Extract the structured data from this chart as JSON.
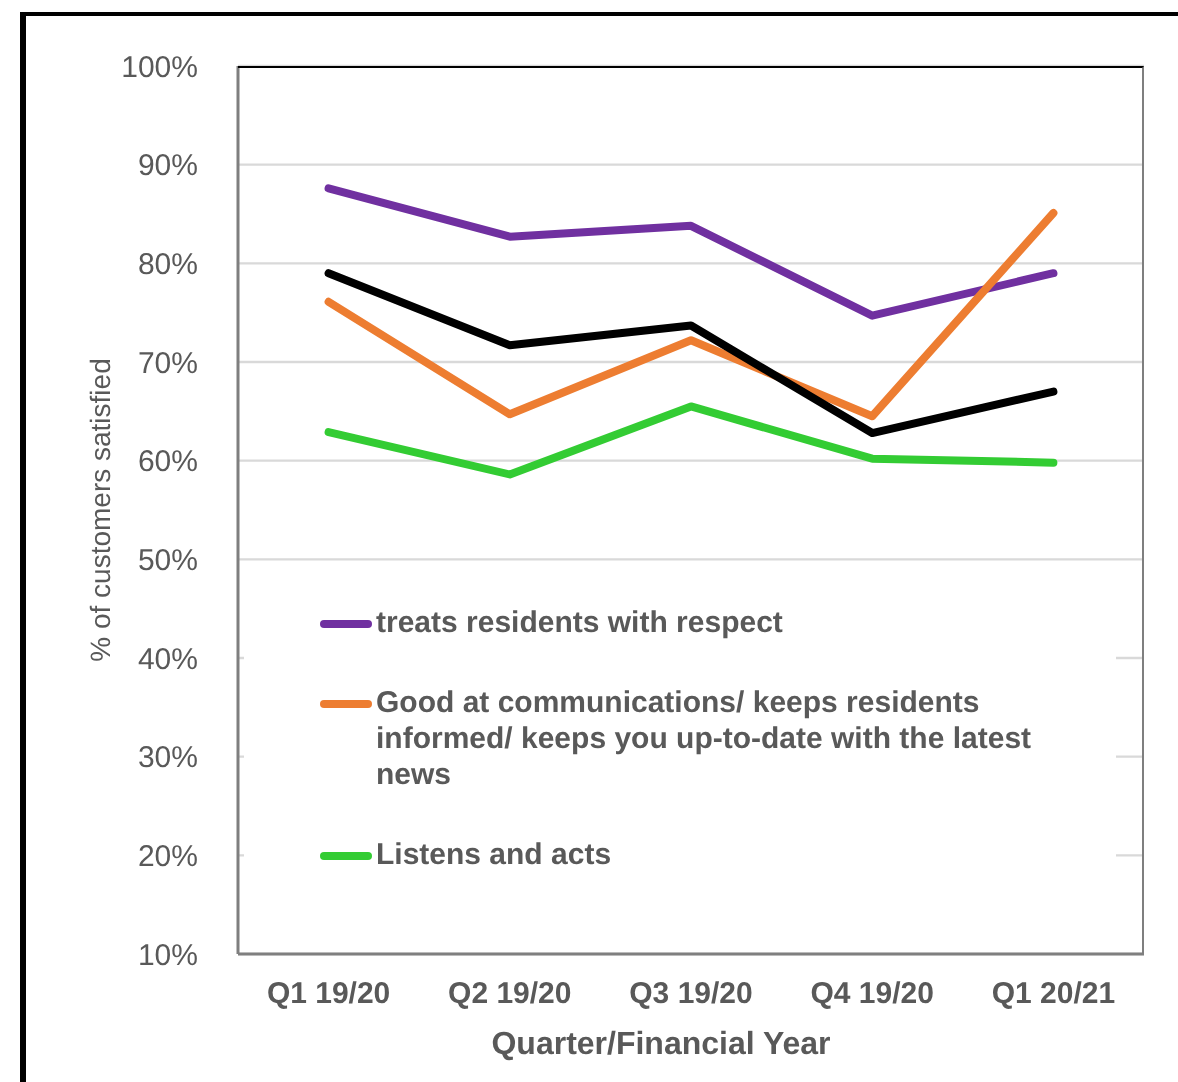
{
  "chart_data": {
    "type": "line",
    "ylabel": "% of customers satisfied",
    "xlabel": "Quarter/Financial Year",
    "categories": [
      "Q1 19/20",
      "Q2 19/20",
      "Q3 19/20",
      "Q4 19/20",
      "Q1 20/21"
    ],
    "series": [
      {
        "name": "treats residents with respect",
        "color": "#7030a0",
        "values": [
          87.6,
          82.7,
          83.8,
          74.7,
          79.0
        ]
      },
      {
        "name": "Good at communications/ keeps residents informed/ keeps you up-to-date with the latest news",
        "color": "#ed7d31",
        "values": [
          76.1,
          64.7,
          72.2,
          64.5,
          85.1
        ]
      },
      {
        "name": "Listens and acts",
        "color": "#33cc33",
        "values": [
          62.9,
          58.6,
          65.5,
          60.2,
          59.8
        ]
      },
      {
        "color": "#000000",
        "values": [
          79.0,
          71.7,
          73.7,
          62.8,
          67.0
        ]
      }
    ],
    "ylim": [
      10,
      100
    ],
    "yticks": [
      {
        "value": 10,
        "label": "10%"
      },
      {
        "value": 20,
        "label": "20%"
      },
      {
        "value": 30,
        "label": "30%"
      },
      {
        "value": 40,
        "label": "40%"
      },
      {
        "value": 50,
        "label": "50%"
      },
      {
        "value": 60,
        "label": "60%"
      },
      {
        "value": 70,
        "label": "70%"
      },
      {
        "value": 80,
        "label": "80%"
      },
      {
        "value": 90,
        "label": "90%"
      },
      {
        "value": 100,
        "label": "100%"
      }
    ],
    "grid": "y",
    "legend": "bottom left",
    "marker": "none",
    "line_style": "solid"
  }
}
